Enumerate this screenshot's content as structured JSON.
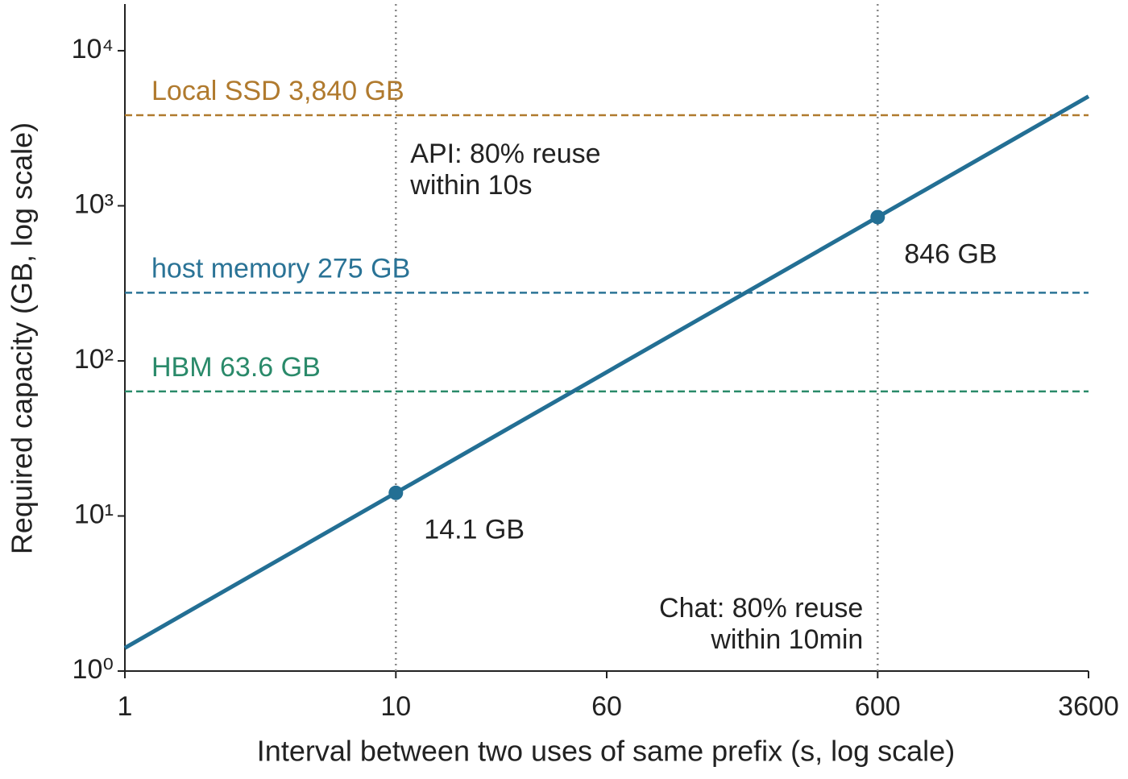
{
  "chart_data": {
    "type": "line",
    "xlabel": "Interval between two uses of same prefix (s, log scale)",
    "ylabel": "Required capacity (GB, log scale)",
    "xscale": "log",
    "yscale": "log",
    "xlim": [
      1,
      3600
    ],
    "ylim": [
      1,
      20000
    ],
    "xticks": [
      1,
      10,
      60,
      600,
      3600
    ],
    "yticks": [
      {
        "value": 1,
        "label": "10⁰"
      },
      {
        "value": 10,
        "label": "10¹"
      },
      {
        "value": 100,
        "label": "10²"
      },
      {
        "value": 1000,
        "label": "10³"
      },
      {
        "value": 10000,
        "label": "10⁴"
      }
    ],
    "series": [
      {
        "color": "#236f94",
        "x": [
          1,
          3600
        ],
        "values": [
          1.41,
          5076
        ]
      }
    ],
    "points": {
      "color": "#236f94",
      "x": [
        10,
        600
      ],
      "values": [
        14.1,
        846
      ],
      "value_labels": [
        "14.1 GB",
        "846 GB"
      ]
    },
    "hlines": [
      {
        "value": 3840,
        "label": "Local SSD 3,840 GB",
        "color": "#b07a2e"
      },
      {
        "value": 275,
        "label": "host memory 275 GB",
        "color": "#2a7396"
      },
      {
        "value": 63.6,
        "label": "HBM 63.6 GB",
        "color": "#2a8a6a"
      }
    ],
    "vlines": [
      {
        "value": 10,
        "text": [
          "API: 80% reuse",
          "within 10s"
        ]
      },
      {
        "value": 600,
        "text": [
          "Chat: 80% reuse",
          "within 10min"
        ]
      }
    ]
  }
}
